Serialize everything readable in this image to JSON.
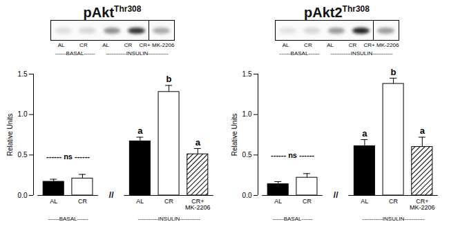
{
  "chart_data": [
    {
      "type": "bar",
      "title": "pAkt",
      "title_superscript": "Thr308",
      "ylabel": "Relative Units",
      "ylim": [
        0,
        1.5
      ],
      "yticks": [
        {
          "value": 0,
          "label": "0.0"
        },
        {
          "value": 0.5,
          "label": "0.5"
        },
        {
          "value": 1,
          "label": "1.0"
        },
        {
          "value": 1.5,
          "label": "1.5"
        }
      ],
      "axis_break": "//",
      "groups": [
        {
          "name": "------BASAL------",
          "categories": [
            "AL",
            "CR"
          ],
          "values": [
            0.17,
            0.21
          ],
          "errors": [
            0.03,
            0.05
          ],
          "colors": [
            "#000000",
            "#ffffff"
          ],
          "annotation": "------ ns ------"
        },
        {
          "name": "-----------INSULIN-----------",
          "categories": [
            "AL",
            "CR",
            "CR+ MK-2206"
          ],
          "values": [
            0.67,
            1.28,
            0.51
          ],
          "errors": [
            0.05,
            0.08,
            0.07
          ],
          "colors": [
            "#000000",
            "#ffffff",
            "#ffffff"
          ],
          "letters": [
            "a",
            "b",
            "a"
          ]
        }
      ]
    },
    {
      "type": "bar",
      "title": "pAkt2",
      "title_superscript": "Thr308",
      "ylabel": "Relative Units",
      "ylim": [
        0,
        1.5
      ],
      "yticks": [
        {
          "value": 0,
          "label": "0.0"
        },
        {
          "value": 0.5,
          "label": "0.5"
        },
        {
          "value": 1,
          "label": "1.0"
        },
        {
          "value": 1.5,
          "label": "1.5"
        }
      ],
      "axis_break": "//",
      "groups": [
        {
          "name": "------BASAL------",
          "categories": [
            "AL",
            "CR"
          ],
          "values": [
            0.14,
            0.22
          ],
          "errors": [
            0.03,
            0.05
          ],
          "colors": [
            "#000000",
            "#ffffff"
          ],
          "annotation": "------ ns ------"
        },
        {
          "name": "-----------INSULIN-----------",
          "categories": [
            "AL",
            "CR",
            "CR+ MK-2206"
          ],
          "values": [
            0.61,
            1.38,
            0.6
          ],
          "errors": [
            0.08,
            0.07,
            0.12
          ],
          "colors": [
            "#000000",
            "#ffffff",
            "#ffffff"
          ],
          "letters": [
            "a",
            "b",
            "a"
          ]
        }
      ]
    }
  ]
}
